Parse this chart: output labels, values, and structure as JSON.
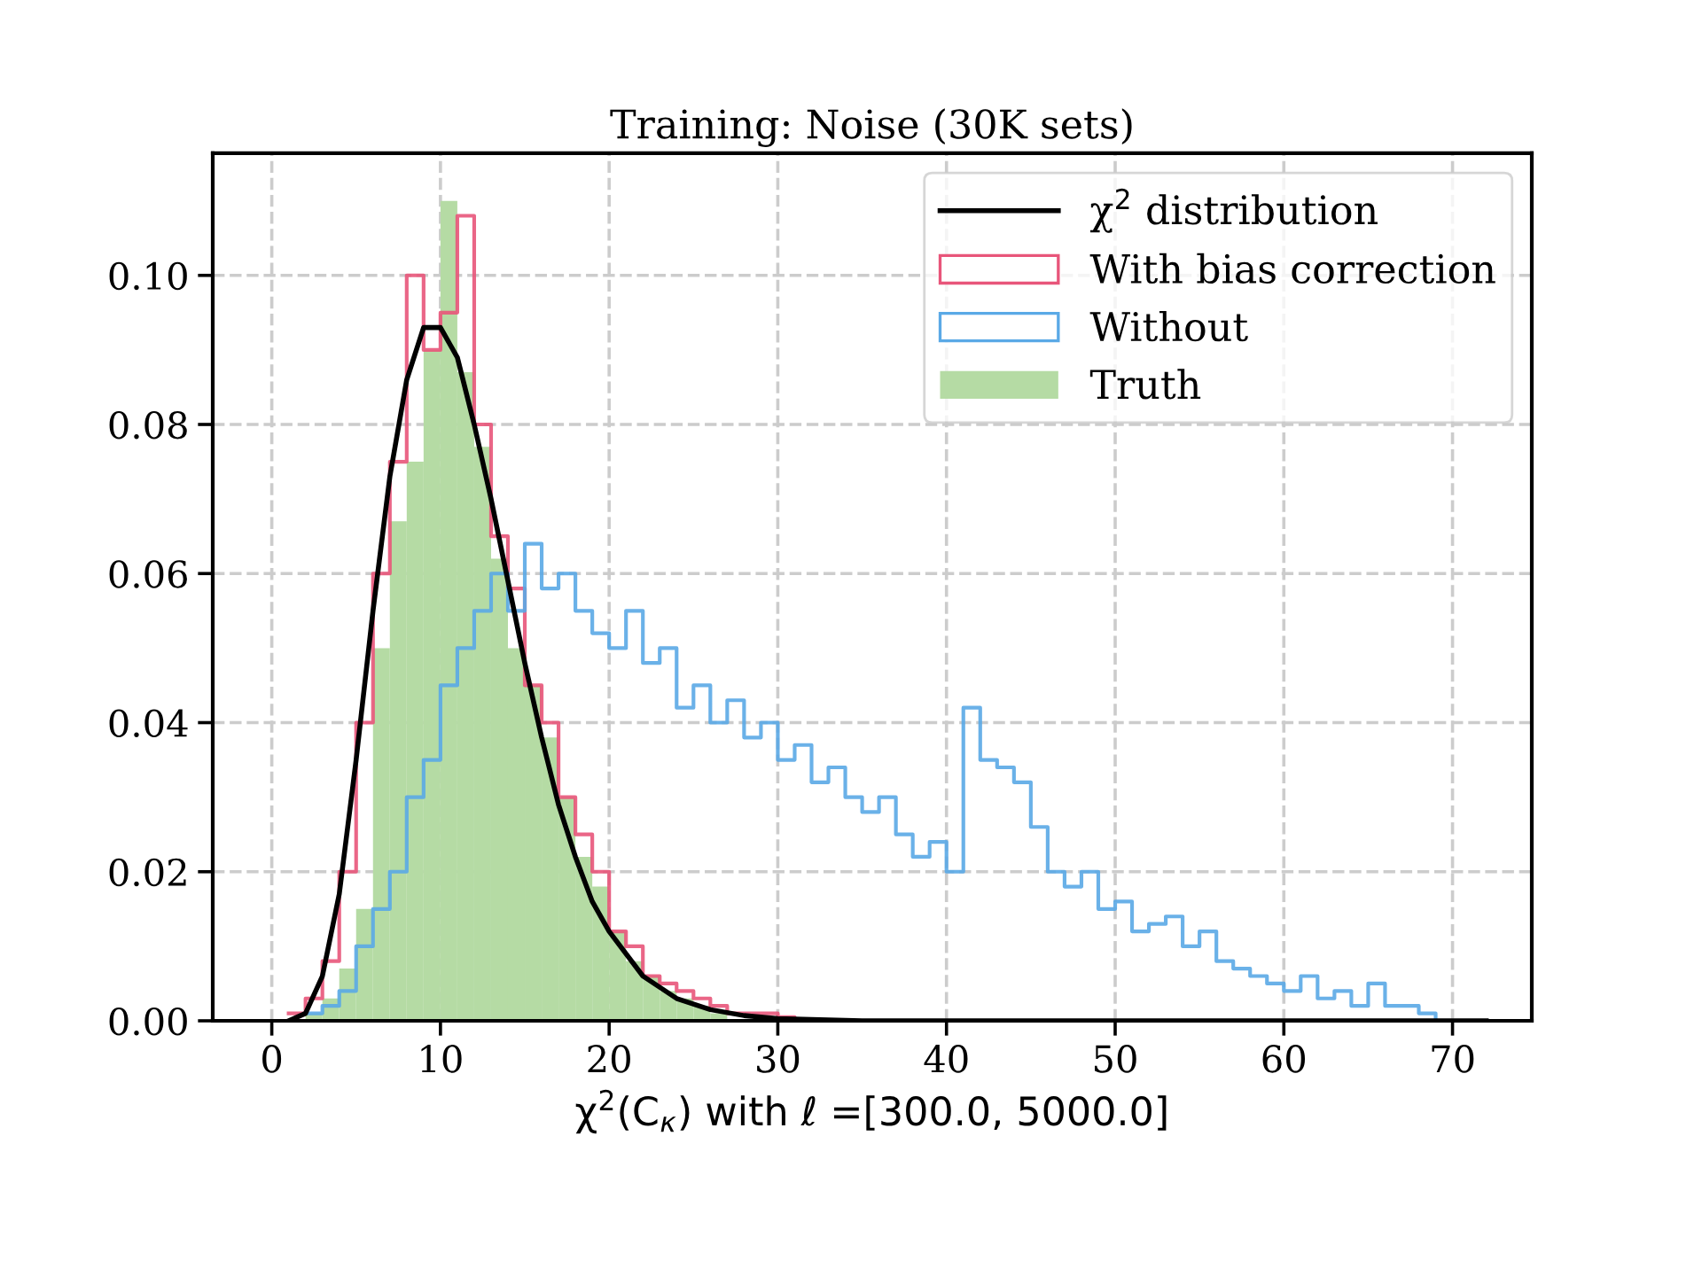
{
  "chart_data": {
    "type": "histogram",
    "title": "Training: Noise (30K sets)",
    "xlabel": "χ$^{2}$(C$_{κ}$) with ℓ =[300.0, 5000.0]",
    "xlim": [
      -3.5,
      74.7
    ],
    "ylim": [
      0,
      0.1164
    ],
    "xticks": [
      0,
      10,
      20,
      30,
      40,
      50,
      60,
      70
    ],
    "yticks": [
      {
        "value": 0,
        "label": "0.00"
      },
      {
        "value": 0.02,
        "label": "0.02"
      },
      {
        "value": 0.04,
        "label": "0.04"
      },
      {
        "value": 0.06,
        "label": "0.06"
      },
      {
        "value": 0.08,
        "label": "0.08"
      },
      {
        "value": 0.1,
        "label": "0.10"
      }
    ],
    "grid": true,
    "legend": "top right",
    "series": [
      {
        "name": "χ$^{2}$ distribution",
        "type": "line",
        "color": "#000000",
        "x": [
          1,
          2,
          3,
          4,
          5,
          6,
          7,
          8,
          9,
          10,
          11,
          12,
          13,
          14,
          15,
          16,
          17,
          18,
          19,
          20,
          22,
          24,
          26,
          28,
          30,
          35,
          72
        ],
        "values": [
          0,
          0.001,
          0.006,
          0.017,
          0.035,
          0.055,
          0.073,
          0.086,
          0.093,
          0.093,
          0.089,
          0.08,
          0.07,
          0.059,
          0.048,
          0.038,
          0.029,
          0.022,
          0.016,
          0.012,
          0.006,
          0.003,
          0.0015,
          0.0007,
          0.0003,
          0,
          0
        ]
      },
      {
        "name": "With bias correction",
        "type": "step",
        "color": "#e8557a",
        "x": [
          1,
          2,
          3,
          4,
          5,
          6,
          7,
          8,
          9,
          10,
          11,
          12,
          13,
          14,
          15,
          16,
          17,
          18,
          19,
          20,
          21,
          22,
          23,
          24,
          25,
          26,
          27,
          28,
          29,
          30,
          31
        ],
        "values": [
          0.001,
          0.003,
          0.008,
          0.02,
          0.04,
          0.06,
          0.075,
          0.1,
          0.09,
          0.095,
          0.108,
          0.08,
          0.065,
          0.058,
          0.045,
          0.04,
          0.03,
          0.025,
          0.02,
          0.012,
          0.01,
          0.006,
          0.005,
          0.004,
          0.003,
          0.002,
          0.001,
          0.001,
          0.001,
          0.0005,
          0
        ]
      },
      {
        "name": "Without",
        "type": "step",
        "color": "#5aa9e6",
        "x": [
          2,
          3,
          4,
          5,
          6,
          7,
          8,
          9,
          10,
          11,
          12,
          13,
          14,
          15,
          16,
          17,
          18,
          19,
          20,
          21,
          22,
          23,
          24,
          25,
          26,
          27,
          28,
          29,
          30,
          31,
          32,
          33,
          34,
          35,
          36,
          37,
          38,
          39,
          40,
          41,
          42,
          43,
          44,
          45,
          46,
          47,
          48,
          49,
          50,
          51,
          52,
          53,
          54,
          55,
          56,
          57,
          58,
          59,
          60,
          61,
          62,
          63,
          64,
          65,
          66,
          67,
          68,
          69,
          70
        ],
        "values": [
          0.001,
          0.002,
          0.004,
          0.01,
          0.015,
          0.02,
          0.03,
          0.035,
          0.045,
          0.05,
          0.055,
          0.06,
          0.055,
          0.064,
          0.058,
          0.06,
          0.055,
          0.052,
          0.05,
          0.055,
          0.048,
          0.05,
          0.042,
          0.045,
          0.04,
          0.043,
          0.038,
          0.04,
          0.035,
          0.037,
          0.032,
          0.034,
          0.03,
          0.028,
          0.03,
          0.025,
          0.022,
          0.024,
          0.02,
          0.042,
          0.035,
          0.034,
          0.032,
          0.026,
          0.02,
          0.018,
          0.02,
          0.015,
          0.016,
          0.012,
          0.013,
          0.014,
          0.01,
          0.012,
          0.008,
          0.007,
          0.006,
          0.005,
          0.004,
          0.006,
          0.003,
          0.004,
          0.002,
          0.005,
          0.002,
          0.002,
          0.001,
          0,
          0
        ]
      },
      {
        "name": "Truth",
        "color": "#b5dba4",
        "bins": [
          2,
          3,
          4,
          5,
          6,
          7,
          8,
          9,
          10,
          11,
          12,
          13,
          14,
          15,
          16,
          17,
          18,
          19,
          20,
          21,
          22,
          23,
          24,
          25,
          26,
          27
        ],
        "values": [
          0.001,
          0.003,
          0.007,
          0.015,
          0.05,
          0.067,
          0.075,
          0.09,
          0.11,
          0.087,
          0.077,
          0.062,
          0.05,
          0.045,
          0.038,
          0.03,
          0.022,
          0.018,
          0.012,
          0.008,
          0.006,
          0.004,
          0.003,
          0.002,
          0.001
        ]
      }
    ]
  }
}
